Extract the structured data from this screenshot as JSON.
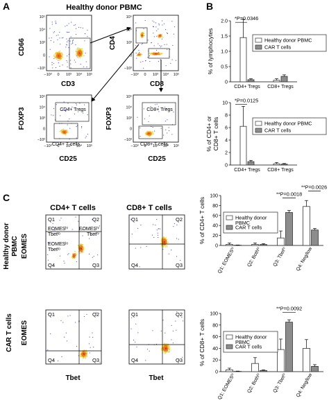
{
  "panel_labels": {
    "a": "A",
    "b": "B",
    "c": "C"
  },
  "panel_a": {
    "title": "Healthy donor PBMC",
    "plots": [
      {
        "ylabel": "CD66",
        "xlabel": "CD3",
        "gates": []
      },
      {
        "ylabel": "CD4",
        "xlabel": "CD8",
        "gates": []
      },
      {
        "ylabel": "FOXP3",
        "xlabel": "CD25",
        "gates": [
          "CD4+ Tregs",
          "CD4+ T cells"
        ]
      },
      {
        "ylabel": "FOXP3",
        "xlabel": "CD25",
        "gates": [
          "CD8+ Tregs",
          "CD8+ T cells"
        ]
      }
    ],
    "ticks_y1": [
      "10⁵",
      "10⁴",
      "10³",
      "0",
      "−10³"
    ],
    "ticks_y2": [
      "10⁵",
      "10⁴",
      "10³",
      "0",
      "−10³"
    ],
    "ticks_x": [
      "−10³",
      "0",
      "10³",
      "10⁴",
      "10⁵"
    ]
  },
  "panel_c": {
    "col_titles": [
      "CD4+ T cells",
      "CD8+ T cells"
    ],
    "row_titles": [
      [
        "Healthy donor",
        "PBMC",
        "EOMES"
      ],
      [
        "CAR T cells",
        "EOMES"
      ]
    ],
    "xlabel": "Tbet",
    "quadrants": [
      "Q1",
      "Q2",
      "Q3",
      "Q4"
    ],
    "quad_text": {
      "q1": [
        "EOMESʰⁱ",
        "Tbetˡᵒ"
      ],
      "q2": [
        "EOMESʰⁱ",
        "Tbetʰⁱ"
      ],
      "q4": [
        "EOMESˡᵒ",
        "Tbetˡᵒ"
      ]
    }
  },
  "colors": {
    "healthy": "#ffffff",
    "car": "#8c8c8c",
    "bar_edge": "#333333"
  },
  "chart_data": [
    {
      "type": "bar",
      "panel": "B-top",
      "ylabel": "% of lymphocytes",
      "categories": [
        "CD4+ Tregs",
        "CD8+ Tregs"
      ],
      "ylim": [
        0,
        2.0
      ],
      "yticks": [
        "0",
        "0.5",
        "1.0",
        "1.5",
        "2.0"
      ],
      "series": [
        {
          "name": "Healthy donor PBMC",
          "values": [
            1.45,
            0.05
          ],
          "errors": [
            0.6,
            0.05
          ]
        },
        {
          "name": "CAR T cells",
          "values": [
            0.07,
            0.18
          ],
          "errors": [
            0.03,
            0.05
          ]
        }
      ],
      "annotation": "*P=0.0346",
      "legend_position": "top-right"
    },
    {
      "type": "bar",
      "panel": "B-bottom",
      "ylabel": "% of CD4+ or CD8+ T cells",
      "categories": [
        "CD4+ Tregs",
        "CD8+ Tregs"
      ],
      "ylim": [
        0,
        10
      ],
      "yticks": [
        "0",
        "2",
        "4",
        "6",
        "8",
        "10"
      ],
      "series": [
        {
          "name": "Healthy donor PBMC",
          "values": [
            6.2,
            0.2
          ],
          "errors": [
            3.2,
            0.2
          ]
        },
        {
          "name": "CAR T cells",
          "values": [
            0.55,
            0.15
          ],
          "errors": [
            0.2,
            0.1
          ]
        }
      ],
      "annotation": "*P=0.0125",
      "legend_position": "top-right"
    },
    {
      "type": "bar",
      "panel": "C-top",
      "ylabel": "% of CD4+ T cells",
      "categories": [
        "Q1: EOMESʰⁱ",
        "Q2: Bothʰⁱ",
        "Q3: Tbetʰⁱ",
        "Q4: Neg/low"
      ],
      "ylim": [
        0,
        100
      ],
      "yticks": [
        "0",
        "20",
        "40",
        "60",
        "80",
        "100"
      ],
      "series": [
        {
          "name": "Healthy donor PBMC",
          "values": [
            2,
            2,
            15,
            78
          ],
          "errors": [
            3,
            3,
            14,
            12
          ]
        },
        {
          "name": "CAR T cells",
          "values": [
            0.5,
            2,
            66,
            31
          ],
          "errors": [
            0.5,
            1.5,
            4,
            3
          ]
        }
      ],
      "annotations": [
        "**P=0.0018",
        "**P=0.0026"
      ],
      "legend_position": "top-left"
    },
    {
      "type": "bar",
      "panel": "C-bottom",
      "ylabel": "% of CD8+ T cells",
      "categories": [
        "Q1: EOMESʰⁱ",
        "Q2: Bothʰⁱ",
        "Q3: Tbetʰⁱ",
        "Q4: Neg/low"
      ],
      "ylim": [
        0,
        100
      ],
      "yticks": [
        "0",
        "20",
        "40",
        "60",
        "80",
        "100"
      ],
      "series": [
        {
          "name": "Healthy donor PBMC",
          "values": [
            3,
            14,
            38,
            40
          ],
          "errors": [
            3,
            10,
            18,
            15
          ]
        },
        {
          "name": "CAR T cells",
          "values": [
            0.5,
            2,
            85,
            9
          ],
          "errors": [
            0.5,
            1,
            4,
            3
          ]
        }
      ],
      "annotation": "**P=0.0092",
      "legend_position": "top-left"
    }
  ]
}
